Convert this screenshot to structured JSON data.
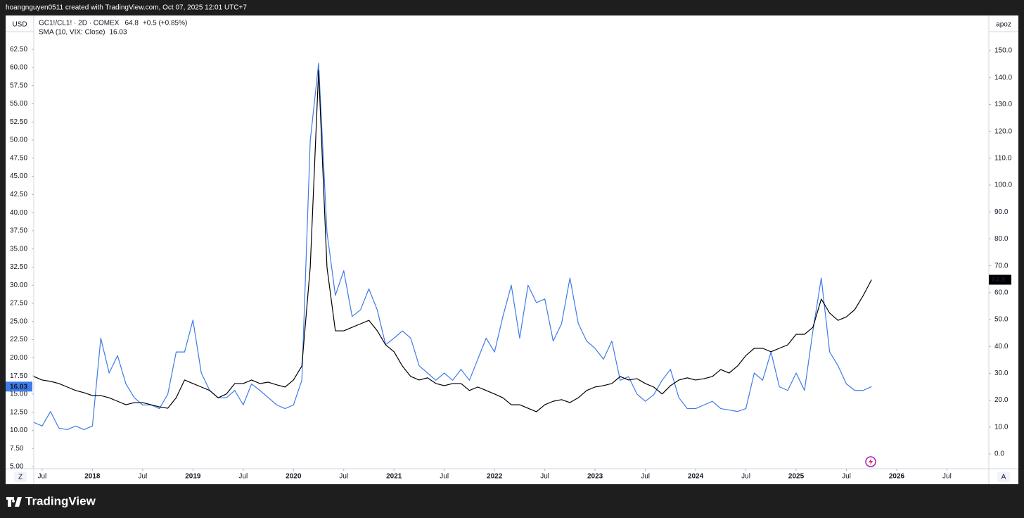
{
  "banner": "hoangnguyen0511 created with TradingView.com, Oct 07, 2025 12:01 UTC+7",
  "footer": {
    "brand": "TradingView"
  },
  "controls": {
    "left_button": "Z",
    "right_button": "A"
  },
  "chart_data": {
    "type": "line",
    "ylabel": "USD",
    "y2label": "apoz",
    "grid": false,
    "x": [
      "2017-06",
      "2017-07",
      "2017-08",
      "2017-09",
      "2017-10",
      "2017-11",
      "2017-12",
      "2018-01",
      "2018-02",
      "2018-03",
      "2018-04",
      "2018-05",
      "2018-06",
      "2018-07",
      "2018-08",
      "2018-09",
      "2018-10",
      "2018-11",
      "2018-12",
      "2019-01",
      "2019-02",
      "2019-03",
      "2019-04",
      "2019-05",
      "2019-06",
      "2019-07",
      "2019-08",
      "2019-09",
      "2019-10",
      "2019-11",
      "2019-12",
      "2020-01",
      "2020-02",
      "2020-03",
      "2020-04",
      "2020-05",
      "2020-06",
      "2020-07",
      "2020-08",
      "2020-09",
      "2020-10",
      "2020-11",
      "2020-12",
      "2021-01",
      "2021-02",
      "2021-03",
      "2021-04",
      "2021-05",
      "2021-06",
      "2021-07",
      "2021-08",
      "2021-09",
      "2021-10",
      "2021-11",
      "2021-12",
      "2022-01",
      "2022-02",
      "2022-03",
      "2022-04",
      "2022-05",
      "2022-06",
      "2022-07",
      "2022-08",
      "2022-09",
      "2022-10",
      "2022-11",
      "2022-12",
      "2023-01",
      "2023-02",
      "2023-03",
      "2023-04",
      "2023-05",
      "2023-06",
      "2023-07",
      "2023-08",
      "2023-09",
      "2023-10",
      "2023-11",
      "2023-12",
      "2024-01",
      "2024-02",
      "2024-03",
      "2024-04",
      "2024-05",
      "2024-06",
      "2024-07",
      "2024-08",
      "2024-09",
      "2024-10",
      "2024-11",
      "2024-12",
      "2025-01",
      "2025-02",
      "2025-03",
      "2025-04",
      "2025-05",
      "2025-06",
      "2025-07",
      "2025-08",
      "2025-09",
      "2025-10"
    ],
    "xlim": [
      "2017-06",
      "2026-12"
    ],
    "xticks": [
      {
        "value": "2017-07",
        "label": "Jul"
      },
      {
        "value": "2018-01",
        "label": "2018"
      },
      {
        "value": "2018-07",
        "label": "Jul"
      },
      {
        "value": "2019-01",
        "label": "2019"
      },
      {
        "value": "2019-07",
        "label": "Jul"
      },
      {
        "value": "2020-01",
        "label": "2020"
      },
      {
        "value": "2020-07",
        "label": "Jul"
      },
      {
        "value": "2021-01",
        "label": "2021"
      },
      {
        "value": "2021-07",
        "label": "Jul"
      },
      {
        "value": "2022-01",
        "label": "2022"
      },
      {
        "value": "2022-07",
        "label": "Jul"
      },
      {
        "value": "2023-01",
        "label": "2023"
      },
      {
        "value": "2023-07",
        "label": "Jul"
      },
      {
        "value": "2024-01",
        "label": "2024"
      },
      {
        "value": "2024-07",
        "label": "Jul"
      },
      {
        "value": "2025-01",
        "label": "2025"
      },
      {
        "value": "2025-07",
        "label": "Jul"
      },
      {
        "value": "2026-01",
        "label": "2026"
      },
      {
        "value": "2026-07",
        "label": "Jul"
      }
    ],
    "ylim": [
      4.71,
      67.17
    ],
    "yticks": [
      {
        "value": 5,
        "label": "5.00"
      },
      {
        "value": 7.5,
        "label": "7.50"
      },
      {
        "value": 10,
        "label": "10.00"
      },
      {
        "value": 12.5,
        "label": "12.50"
      },
      {
        "value": 15,
        "label": "15.00"
      },
      {
        "value": 17.5,
        "label": "17.50"
      },
      {
        "value": 20,
        "label": "20.00"
      },
      {
        "value": 22.5,
        "label": "22.50"
      },
      {
        "value": 25,
        "label": "25.00"
      },
      {
        "value": 27.5,
        "label": "27.50"
      },
      {
        "value": 30,
        "label": "30.00"
      },
      {
        "value": 32.5,
        "label": "32.50"
      },
      {
        "value": 35,
        "label": "35.00"
      },
      {
        "value": 37.5,
        "label": "37.50"
      },
      {
        "value": 40,
        "label": "40.00"
      },
      {
        "value": 42.5,
        "label": "42.50"
      },
      {
        "value": 45,
        "label": "45.00"
      },
      {
        "value": 47.5,
        "label": "47.50"
      },
      {
        "value": 50,
        "label": "50.00"
      },
      {
        "value": 52.5,
        "label": "52.50"
      },
      {
        "value": 55,
        "label": "55.00"
      },
      {
        "value": 57.5,
        "label": "57.50"
      },
      {
        "value": 60,
        "label": "60.00"
      },
      {
        "value": 62.5,
        "label": "62.50"
      }
    ],
    "y2lim": [
      -5.5,
      163.1
    ],
    "y2ticks": [
      {
        "value": 0,
        "label": "0.0"
      },
      {
        "value": 10,
        "label": "10.0"
      },
      {
        "value": 20,
        "label": "20.0"
      },
      {
        "value": 30,
        "label": "30.0"
      },
      {
        "value": 40,
        "label": "40.0"
      },
      {
        "value": 50,
        "label": "50.0"
      },
      {
        "value": 60,
        "label": "60.0"
      },
      {
        "value": 70,
        "label": "70.0"
      },
      {
        "value": 80,
        "label": "80.0"
      },
      {
        "value": 90,
        "label": "90.0"
      },
      {
        "value": 100,
        "label": "100.0"
      },
      {
        "value": 110,
        "label": "110.0"
      },
      {
        "value": 120,
        "label": "120.0"
      },
      {
        "value": 130,
        "label": "130.0"
      },
      {
        "value": 140,
        "label": "140.0"
      },
      {
        "value": 150,
        "label": "150.0"
      }
    ],
    "series": [
      {
        "name": "SMA (10, VIX: Close)",
        "color": "#3d7be8",
        "axis": "y",
        "values": [
          11.1,
          10.6,
          12.6,
          10.3,
          10.1,
          10.6,
          10.1,
          10.6,
          22.7,
          17.9,
          20.3,
          16.4,
          14.5,
          13.5,
          13.5,
          13.0,
          15.0,
          20.8,
          20.8,
          25.2,
          17.9,
          15.5,
          14.5,
          14.5,
          15.5,
          13.5,
          16.4,
          15.5,
          14.5,
          13.5,
          13.0,
          13.5,
          16.9,
          49.9,
          60.6,
          37.3,
          28.6,
          32.0,
          25.7,
          26.6,
          29.5,
          26.6,
          21.8,
          22.7,
          23.7,
          22.7,
          18.9,
          17.9,
          16.9,
          17.9,
          16.9,
          18.4,
          16.9,
          19.8,
          22.7,
          20.8,
          25.7,
          30.0,
          22.7,
          30.0,
          27.6,
          28.1,
          22.3,
          24.7,
          31.0,
          24.7,
          22.3,
          21.3,
          19.8,
          22.3,
          16.9,
          17.4,
          15.0,
          14.0,
          14.9,
          16.9,
          18.4,
          14.5,
          13.0,
          13.0,
          13.5,
          14.0,
          13.0,
          12.8,
          12.6,
          13.0,
          17.9,
          16.9,
          20.8,
          16.0,
          15.5,
          17.9,
          15.5,
          23.7,
          31.0,
          20.8,
          18.9,
          16.4,
          15.5,
          15.5,
          16.03
        ]
      },
      {
        "name": "GC1!/CL1! · 2D · COMEX",
        "color": "#000000",
        "axis": "y2",
        "change": "+0.5 (+0.85%)",
        "values": [
          28.8,
          27.5,
          27.0,
          26.2,
          24.9,
          23.6,
          22.8,
          21.7,
          21.7,
          20.9,
          19.6,
          18.3,
          19.1,
          19.1,
          18.3,
          17.5,
          17.0,
          20.9,
          27.5,
          26.2,
          24.9,
          23.6,
          20.9,
          22.3,
          26.2,
          26.2,
          27.5,
          26.2,
          26.7,
          25.7,
          24.9,
          27.5,
          32.7,
          69.4,
          142.7,
          69.4,
          45.8,
          45.8,
          47.1,
          48.4,
          49.7,
          45.8,
          40.6,
          38.0,
          32.7,
          28.8,
          27.5,
          28.3,
          26.2,
          25.4,
          26.2,
          26.2,
          23.6,
          24.9,
          23.6,
          22.3,
          20.9,
          18.3,
          18.3,
          17.0,
          15.7,
          18.3,
          19.6,
          20.2,
          19.1,
          20.9,
          23.6,
          24.9,
          25.4,
          26.2,
          28.8,
          27.5,
          28.0,
          26.2,
          24.9,
          22.3,
          25.4,
          27.5,
          28.3,
          27.5,
          28.0,
          28.8,
          31.4,
          30.1,
          32.7,
          36.6,
          39.3,
          39.3,
          38.0,
          39.3,
          40.6,
          44.5,
          44.5,
          47.1,
          57.6,
          52.4,
          49.7,
          51.0,
          53.7,
          58.9,
          64.8
        ]
      }
    ]
  }
}
